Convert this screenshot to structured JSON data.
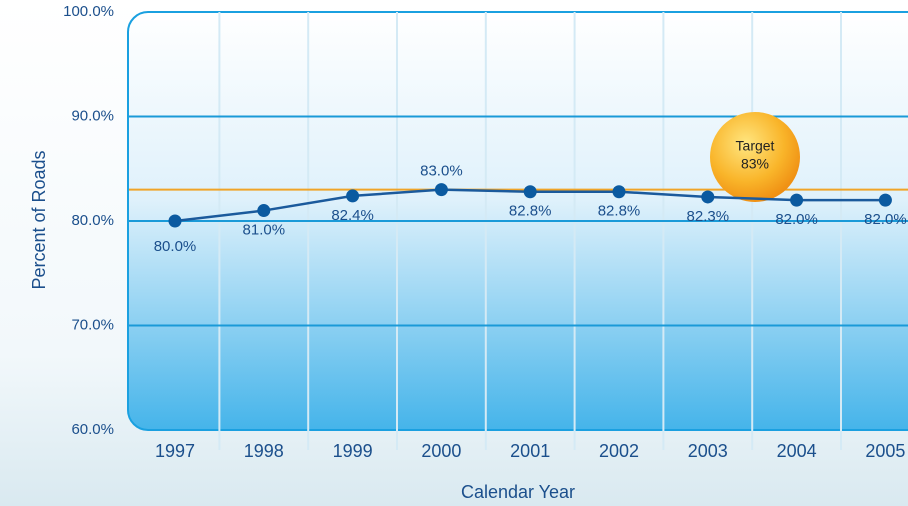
{
  "chart_data": {
    "type": "line",
    "x_label": "Calendar Year",
    "y_label": "Percent of Roads",
    "categories": [
      "1997",
      "1998",
      "1999",
      "2000",
      "2001",
      "2002",
      "2003",
      "2004",
      "2005"
    ],
    "series": [
      {
        "name": "Percent of Roads",
        "color": "#1b5a9c",
        "values": [
          80.0,
          81.0,
          82.4,
          83.0,
          82.8,
          82.8,
          82.3,
          82.0,
          82.0
        ],
        "value_labels": [
          "80.0%",
          "81.0%",
          "82.4%",
          "83.0%",
          "82.8%",
          "82.8%",
          "82.3%",
          "82.0%",
          "82.0%"
        ]
      }
    ],
    "target": {
      "label": "Target",
      "value": 83,
      "value_label": "83%",
      "color": "#f0a428"
    },
    "ylim": [
      60,
      100
    ],
    "yticks": [
      {
        "value": 60,
        "label": "60.0%"
      },
      {
        "value": 70,
        "label": "70.0%"
      },
      {
        "value": 80,
        "label": "80.0%"
      },
      {
        "value": 90,
        "label": "90.0%"
      },
      {
        "value": 100,
        "label": "100.0%"
      }
    ],
    "grid": true
  }
}
